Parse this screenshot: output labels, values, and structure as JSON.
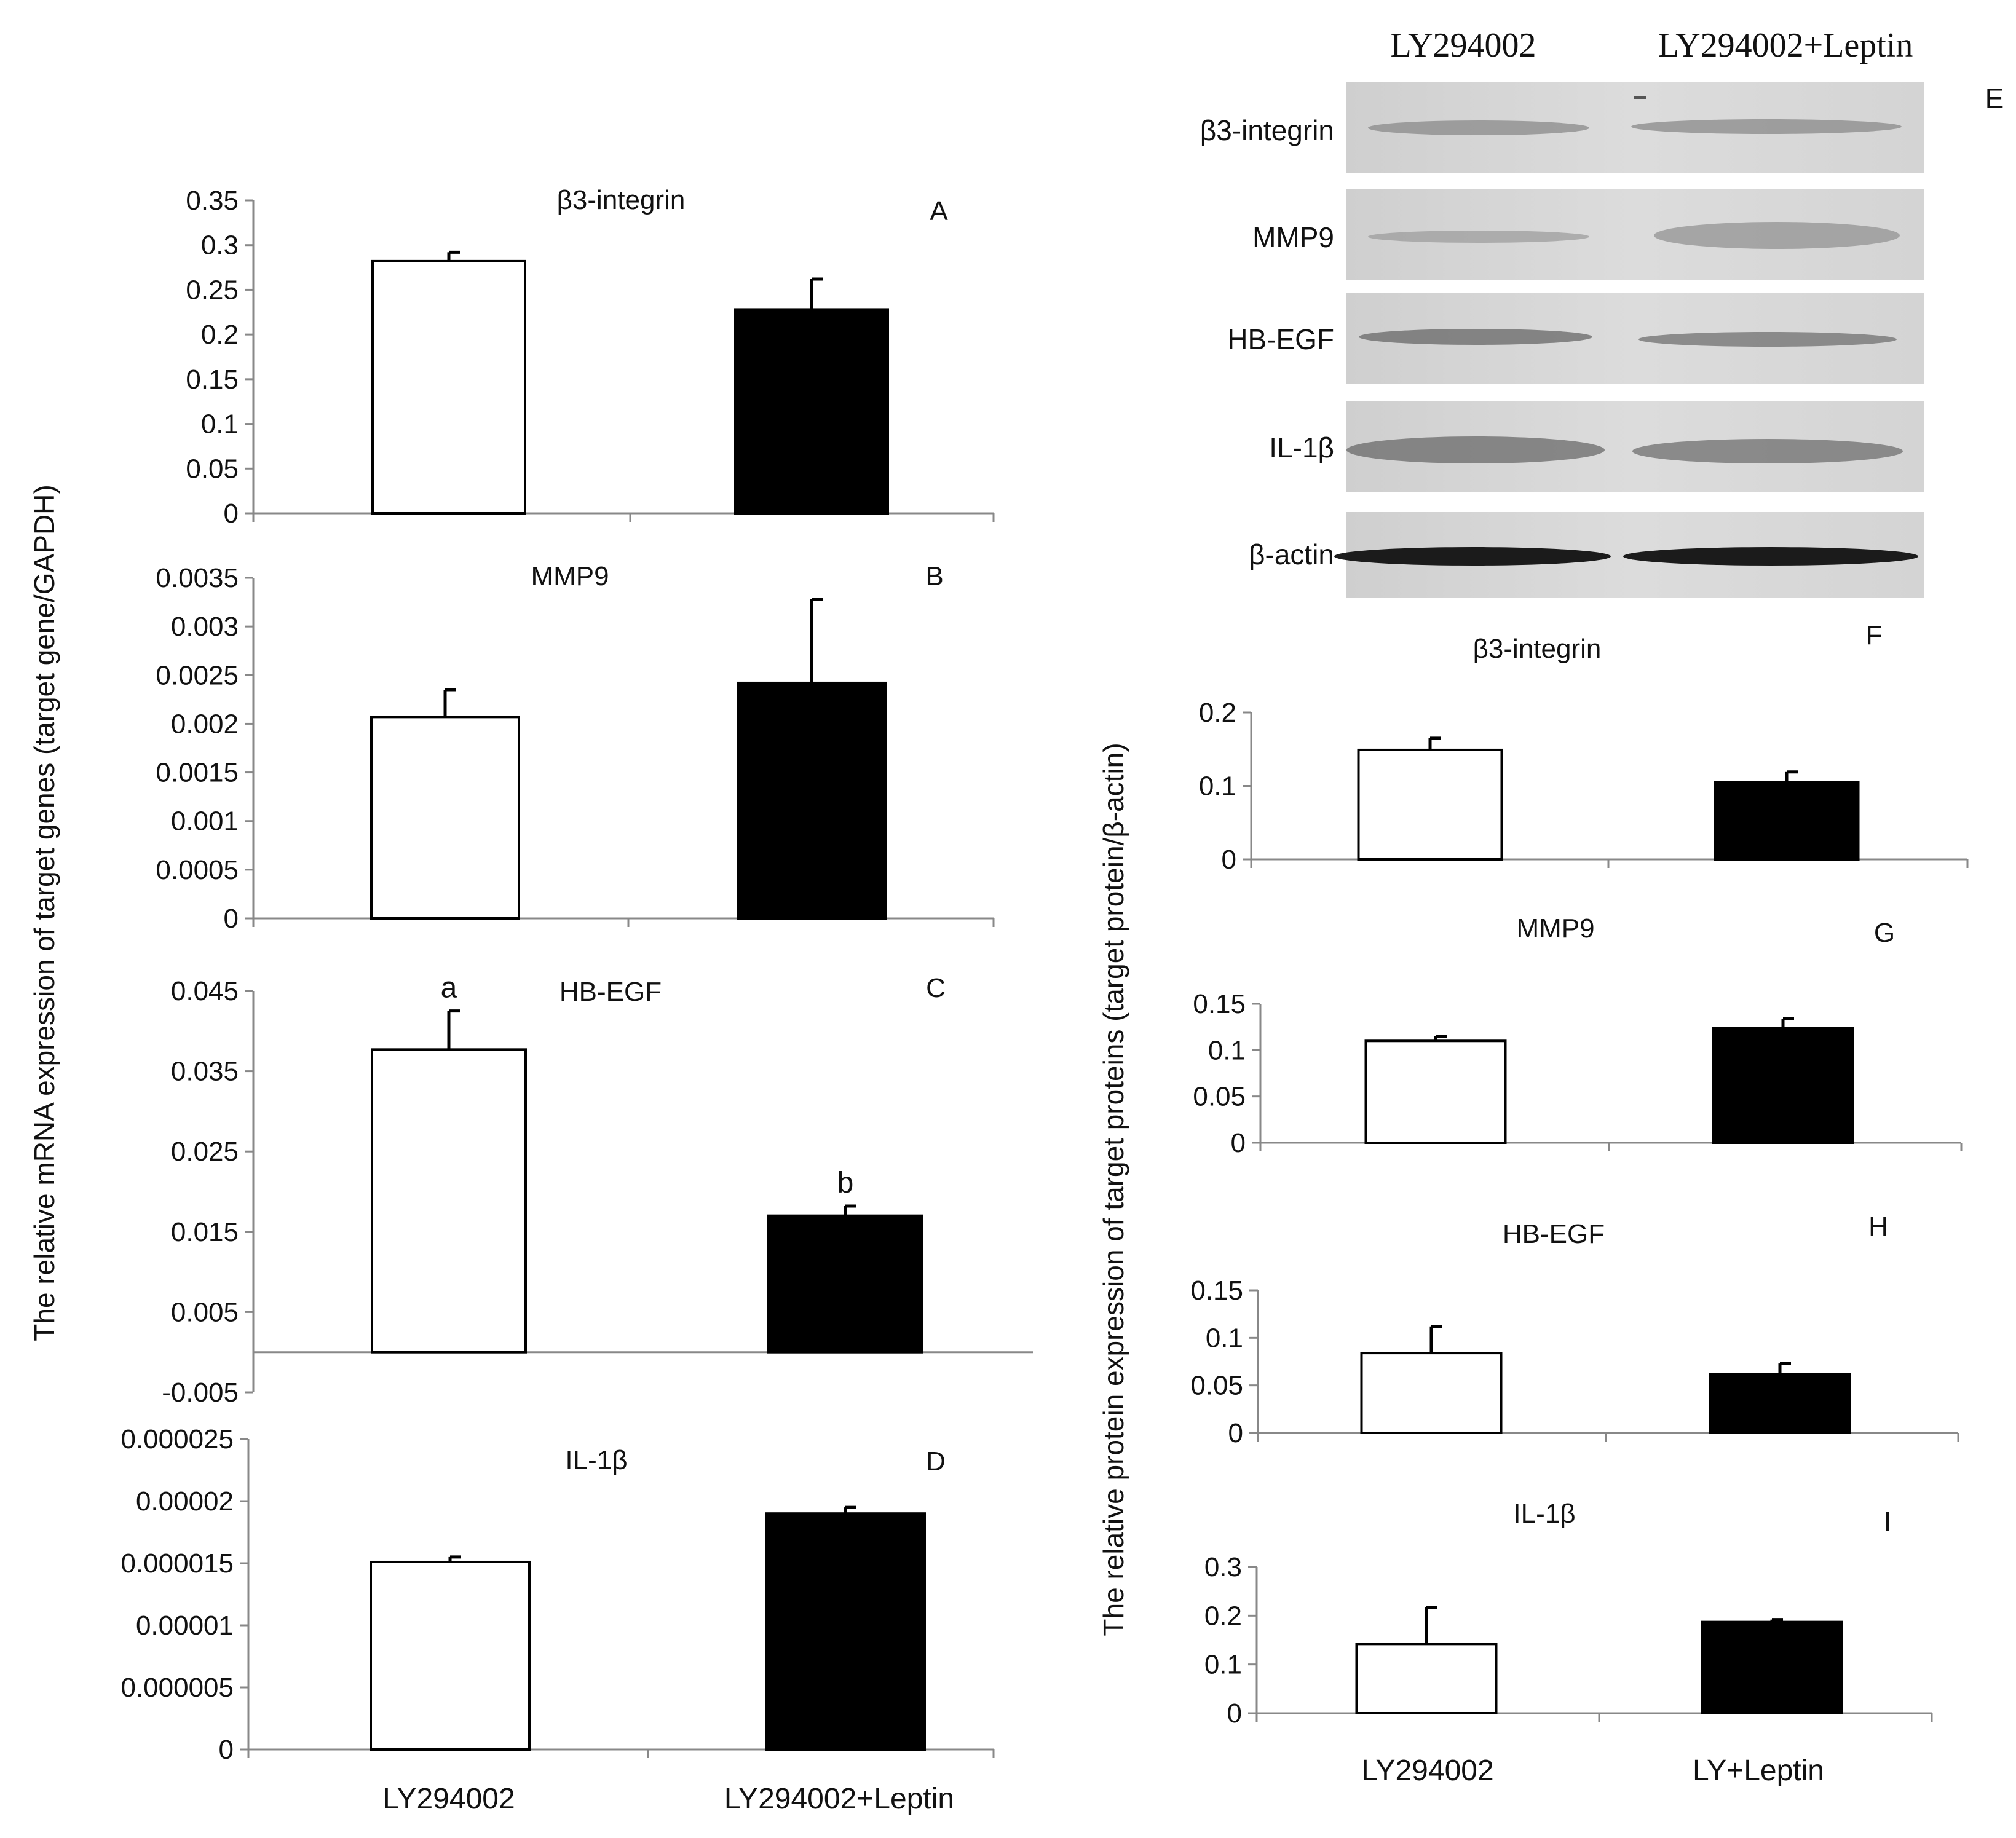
{
  "mrna_ylabel": "The relative mRNA expression  of target genes (target gene/GAPDH)",
  "protein_ylabel": "The relative protein expression of target proteins  (target protein/β-actin)",
  "mrna_groups": [
    "LY294002",
    "LY294002+Leptin"
  ],
  "protein_groups": [
    "LY294002",
    "LY+Leptin"
  ],
  "blot": {
    "panel_letter": "E",
    "lane_labels": [
      "LY294002",
      "LY294002+Leptin"
    ],
    "rows": [
      "β3-integrin",
      "MMP9",
      "HB-EGF",
      "IL-1β",
      "β-actin"
    ]
  },
  "bar_colors": {
    "LY294002": "#ffffff",
    "LY294002+Leptin": "#000000"
  },
  "chart_data": [
    {
      "id": "A",
      "type": "bar",
      "title": "β3-integrin",
      "panel_letter": "A",
      "categories": [
        "LY294002",
        "LY294002+Leptin"
      ],
      "values": [
        0.282,
        0.228
      ],
      "errors": [
        0.01,
        0.034
      ],
      "ylim": [
        0,
        0.35
      ],
      "tick_labels": [
        "0",
        "0.05",
        "0.1",
        "0.15",
        "0.2",
        "0.25",
        "0.3",
        "0.35"
      ],
      "annotations": []
    },
    {
      "id": "B",
      "type": "bar",
      "title": "MMP9",
      "panel_letter": "B",
      "categories": [
        "LY294002",
        "LY294002+Leptin"
      ],
      "values": [
        0.00207,
        0.00242
      ],
      "errors": [
        0.00028,
        0.00086
      ],
      "ylim": [
        0,
        0.0035
      ],
      "tick_labels": [
        "0",
        "0.0005",
        "0.001",
        "0.0015",
        "0.002",
        "0.0025",
        "0.003",
        "0.0035"
      ],
      "annotations": []
    },
    {
      "id": "C",
      "type": "bar",
      "title": "HB-EGF",
      "panel_letter": "C",
      "categories": [
        "LY294002",
        "LY294002+Leptin"
      ],
      "values": [
        0.0377,
        0.017
      ],
      "errors": [
        0.0048,
        0.0012
      ],
      "ylim": [
        -0.005,
        0.045
      ],
      "tick_labels": [
        "-0.005",
        "0.005",
        "0.015",
        "0.025",
        "0.035",
        "0.045"
      ],
      "annotations": [
        "a",
        "b"
      ]
    },
    {
      "id": "D",
      "type": "bar",
      "title": "IL-1β",
      "panel_letter": "D",
      "categories": [
        "LY294002",
        "LY294002+Leptin"
      ],
      "values": [
        1.51e-05,
        1.9e-05
      ],
      "errors": [
        4e-07,
        5e-07
      ],
      "ylim": [
        0,
        2.5e-05
      ],
      "tick_labels": [
        "0",
        "0.000005",
        "0.00001",
        "0.000015",
        "0.00002",
        "0.000025"
      ],
      "annotations": []
    },
    {
      "id": "F",
      "type": "bar",
      "title": "β3-integrin",
      "panel_letter": "F",
      "categories": [
        "LY294002",
        "LY+Leptin"
      ],
      "values": [
        0.149,
        0.105
      ],
      "errors": [
        0.016,
        0.014
      ],
      "ylim": [
        0,
        0.2
      ],
      "tick_labels": [
        "0",
        "0.1",
        "0.2"
      ],
      "annotations": []
    },
    {
      "id": "G",
      "type": "bar",
      "title": "MMP9",
      "panel_letter": "G",
      "categories": [
        "LY294002",
        "LY+Leptin"
      ],
      "values": [
        0.11,
        0.124
      ],
      "errors": [
        0.005,
        0.01
      ],
      "ylim": [
        0,
        0.15
      ],
      "tick_labels": [
        "0",
        "0.05",
        "0.1",
        "0.15"
      ],
      "annotations": []
    },
    {
      "id": "H",
      "type": "bar",
      "title": "HB-EGF",
      "panel_letter": "H",
      "categories": [
        "LY294002",
        "LY+Leptin"
      ],
      "values": [
        0.084,
        0.062
      ],
      "errors": [
        0.028,
        0.011
      ],
      "ylim": [
        0,
        0.15
      ],
      "tick_labels": [
        "0",
        "0.05",
        "0.1",
        "0.15"
      ],
      "annotations": []
    },
    {
      "id": "I",
      "type": "bar",
      "title": "IL-1β",
      "panel_letter": "I",
      "categories": [
        "LY294002",
        "LY+Leptin"
      ],
      "values": [
        0.142,
        0.187
      ],
      "errors": [
        0.075,
        0.005
      ],
      "ylim": [
        0,
        0.3
      ],
      "tick_labels": [
        "0",
        "0.1",
        "0.2",
        "0.3"
      ],
      "annotations": []
    }
  ]
}
